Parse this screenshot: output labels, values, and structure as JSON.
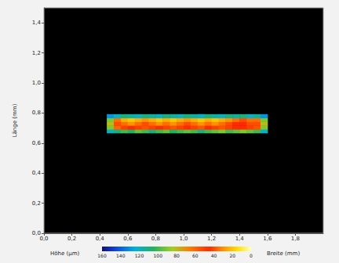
{
  "chart_data": {
    "type": "heatmap",
    "xlabel": "Breite (mm)",
    "ylabel": "Länge (mm)",
    "xlim": [
      0,
      2.0
    ],
    "xticks": [
      {
        "value": 0,
        "label": "0,0"
      },
      {
        "value": 0.2,
        "label": "0,2"
      },
      {
        "value": 0.4,
        "label": "0,4"
      },
      {
        "value": 0.6,
        "label": "0,6"
      },
      {
        "value": 0.8,
        "label": "0,8"
      },
      {
        "value": 1.0,
        "label": "1,0"
      },
      {
        "value": 1.2,
        "label": "1,2"
      },
      {
        "value": 1.4,
        "label": "1,4"
      },
      {
        "value": 1.6,
        "label": "1,6"
      },
      {
        "value": 1.8,
        "label": "1,8"
      }
    ],
    "ylim": [
      0,
      1.5
    ],
    "yticks": [
      {
        "value": 0,
        "label": "0,0"
      },
      {
        "value": 0.2,
        "label": "0,2"
      },
      {
        "value": 0.4,
        "label": "0,4"
      },
      {
        "value": 0.6,
        "label": "0,6"
      },
      {
        "value": 0.8,
        "label": "0,8"
      },
      {
        "value": 1.0,
        "label": "1,0"
      },
      {
        "value": 1.2,
        "label": "1,2"
      },
      {
        "value": 1.4,
        "label": "1,4"
      }
    ],
    "grid": false,
    "cells": {
      "x": [
        0.475,
        0.525,
        0.575,
        0.625,
        0.675,
        0.725,
        0.775,
        0.825,
        0.875,
        0.925,
        0.975,
        1.025,
        1.075,
        1.125,
        1.175,
        1.225,
        1.275,
        1.325,
        1.375,
        1.425,
        1.475,
        1.525,
        1.575
      ],
      "y": [
        0.68,
        0.705,
        0.73,
        0.755,
        0.78
      ],
      "values": [
        [
          120,
          110,
          100,
          105,
          95,
          100,
          110,
          100,
          95,
          105,
          100,
          95,
          100,
          110,
          100,
          95,
          90,
          100,
          95,
          90,
          95,
          100,
          120
        ],
        [
          90,
          60,
          50,
          45,
          50,
          55,
          50,
          45,
          50,
          55,
          50,
          45,
          50,
          55,
          45,
          50,
          55,
          50,
          45,
          45,
          50,
          55,
          90
        ],
        [
          80,
          40,
          35,
          30,
          35,
          40,
          35,
          30,
          35,
          30,
          35,
          40,
          35,
          30,
          35,
          30,
          35,
          40,
          45,
          45,
          40,
          40,
          80
        ],
        [
          90,
          35,
          25,
          20,
          25,
          30,
          25,
          20,
          25,
          20,
          25,
          30,
          25,
          20,
          25,
          20,
          25,
          30,
          35,
          40,
          35,
          35,
          90
        ],
        [
          130,
          120,
          110,
          115,
          120,
          110,
          115,
          120,
          110,
          115,
          120,
          110,
          115,
          120,
          110,
          115,
          120,
          110,
          115,
          110,
          120,
          115,
          130
        ]
      ]
    },
    "colorbar": {
      "label": "Höhe (µm)",
      "range": [
        0,
        160
      ],
      "ticks": [
        0,
        20,
        40,
        60,
        80,
        100,
        120,
        140,
        160
      ]
    }
  }
}
